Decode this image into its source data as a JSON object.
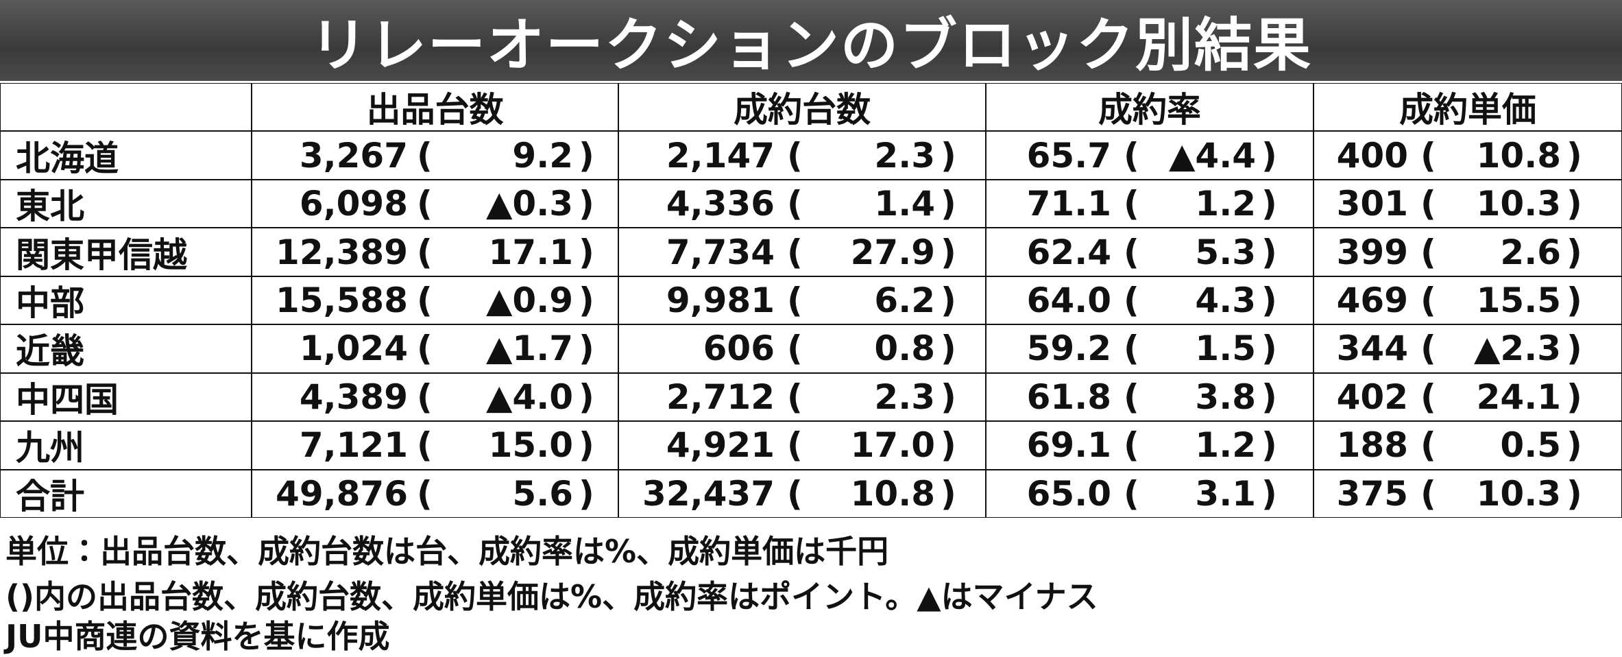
{
  "title": "リレーオークションのブロック別結果",
  "table": {
    "columns": [
      "出品台数",
      "成約台数",
      "成約率",
      "成約単価"
    ],
    "paren_open": "(",
    "paren_close": ")",
    "rows": [
      {
        "region": "北海道",
        "cells": [
          [
            "3,267",
            "9.2"
          ],
          [
            "2,147",
            "2.3"
          ],
          [
            "65.7",
            "▲4.4"
          ],
          [
            "400",
            "10.8"
          ]
        ]
      },
      {
        "region": "東北",
        "cells": [
          [
            "6,098",
            "▲0.3"
          ],
          [
            "4,336",
            "1.4"
          ],
          [
            "71.1",
            "1.2"
          ],
          [
            "301",
            "10.3"
          ]
        ]
      },
      {
        "region": "関東甲信越",
        "cells": [
          [
            "12,389",
            "17.1"
          ],
          [
            "7,734",
            "27.9"
          ],
          [
            "62.4",
            "5.3"
          ],
          [
            "399",
            "2.6"
          ]
        ]
      },
      {
        "region": "中部",
        "cells": [
          [
            "15,588",
            "▲0.9"
          ],
          [
            "9,981",
            "6.2"
          ],
          [
            "64.0",
            "4.3"
          ],
          [
            "469",
            "15.5"
          ]
        ]
      },
      {
        "region": "近畿",
        "cells": [
          [
            "1,024",
            "▲1.7"
          ],
          [
            "606",
            "0.8"
          ],
          [
            "59.2",
            "1.5"
          ],
          [
            "344",
            "▲2.3"
          ]
        ]
      },
      {
        "region": "中四国",
        "cells": [
          [
            "4,389",
            "▲4.0"
          ],
          [
            "2,712",
            "2.3"
          ],
          [
            "61.8",
            "3.8"
          ],
          [
            "402",
            "24.1"
          ]
        ]
      },
      {
        "region": "九州",
        "cells": [
          [
            "7,121",
            "15.0"
          ],
          [
            "4,921",
            "17.0"
          ],
          [
            "69.1",
            "1.2"
          ],
          [
            "188",
            "0.5"
          ]
        ]
      },
      {
        "region": "合計",
        "cells": [
          [
            "49,876",
            "5.6"
          ],
          [
            "32,437",
            "10.8"
          ],
          [
            "65.0",
            "3.1"
          ],
          [
            "375",
            "10.3"
          ]
        ]
      }
    ]
  },
  "notes": [
    "単位：出品台数、成約台数は台、成約率は%、成約単価は千円",
    "()内の出品台数、成約台数、成約単価は%、成約率はポイント。▲はマイナス",
    "JU中商連の資料を基に作成"
  ]
}
